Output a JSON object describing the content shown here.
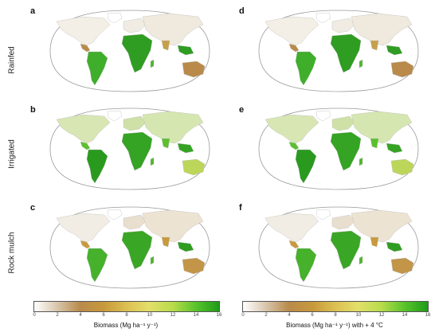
{
  "panels": [
    {
      "letter": "a",
      "variant": "rainfed"
    },
    {
      "letter": "b",
      "variant": "irrigated"
    },
    {
      "letter": "c",
      "variant": "rock"
    },
    {
      "letter": "d",
      "variant": "rainfed"
    },
    {
      "letter": "e",
      "variant": "irrigated"
    },
    {
      "letter": "f",
      "variant": "rock"
    }
  ],
  "rows": [
    "Rainfed",
    "Irrigated",
    "Rock mulch"
  ],
  "colorbars": [
    {
      "title": "Biomass (Mg ha⁻¹ y⁻¹)",
      "ticks": [
        "0",
        "2",
        "4",
        "6",
        "8",
        "10",
        "12",
        "14",
        "16"
      ]
    },
    {
      "title": "Biomass (Mg ha⁻¹ y⁻¹) with + 4 °C",
      "ticks": [
        "0",
        "2",
        "4",
        "6",
        "8",
        "10",
        "12",
        "14",
        "16"
      ]
    }
  ],
  "colors": {
    "low": "#ffffff",
    "mid": "#c89a3c",
    "high": "#1f9b1a",
    "outline": "#9a9a9a"
  }
}
